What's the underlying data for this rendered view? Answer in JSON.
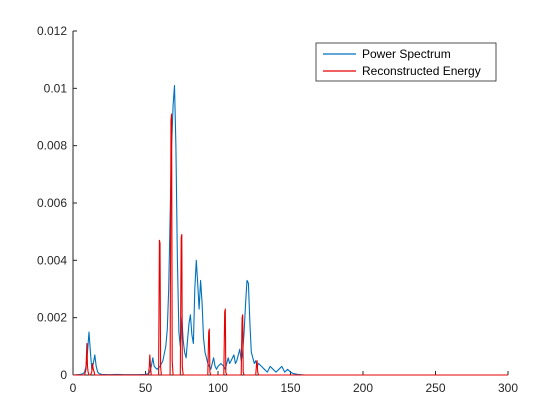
{
  "chart_data": {
    "type": "line",
    "xlim": [
      0,
      300
    ],
    "ylim": [
      0,
      0.012
    ],
    "x_ticks": [
      0,
      50,
      100,
      150,
      200,
      250,
      300
    ],
    "y_ticks": [
      0,
      0.002,
      0.004,
      0.006,
      0.008,
      0.01,
      0.012
    ],
    "x_tick_labels": [
      "0",
      "50",
      "100",
      "150",
      "200",
      "250",
      "300"
    ],
    "y_tick_labels": [
      "0",
      "0.002",
      "0.004",
      "0.006",
      "0.008",
      "0.01",
      "0.012"
    ],
    "grid": false,
    "legend_position": "top-right",
    "series": [
      {
        "name": "Power Spectrum",
        "color": "#0072BD",
        "x": [
          0,
          5,
          7,
          8,
          9,
          10,
          11,
          12,
          13,
          14,
          15,
          16,
          17,
          18,
          20,
          25,
          30,
          35,
          40,
          45,
          50,
          52,
          53,
          54,
          55,
          56,
          58,
          60,
          62,
          64,
          65,
          66,
          67,
          68,
          69,
          70,
          71,
          72,
          73,
          74,
          75,
          76,
          77,
          78,
          79,
          80,
          81,
          82,
          83,
          84,
          85,
          86,
          87,
          88,
          89,
          90,
          91,
          92,
          93,
          94,
          95,
          96,
          97,
          98,
          99,
          100,
          102,
          104,
          105,
          106,
          107,
          108,
          109,
          110,
          111,
          112,
          113,
          114,
          115,
          116,
          117,
          118,
          119,
          120,
          121,
          122,
          123,
          124,
          125,
          126,
          127,
          128,
          130,
          132,
          134,
          136,
          138,
          140,
          142,
          144,
          146,
          148,
          150,
          152,
          155,
          160,
          200,
          300
        ],
        "y": [
          0,
          2e-05,
          5e-05,
          0.0001,
          0.0003,
          0.0008,
          0.0015,
          0.0008,
          0.0002,
          0.0004,
          0.0007,
          0.0003,
          0.0001,
          5e-05,
          2e-05,
          1e-05,
          2e-05,
          1e-05,
          1e-05,
          1e-05,
          2e-05,
          5e-05,
          0.0001,
          0.0003,
          0.0006,
          0.0003,
          0.0002,
          0.0003,
          0.0005,
          0.001,
          0.0016,
          0.003,
          0.0055,
          0.008,
          0.0094,
          0.0101,
          0.008,
          0.004,
          0.0015,
          0.001,
          0.002,
          0.0012,
          0.0008,
          0.0006,
          0.0012,
          0.0018,
          0.0021,
          0.0014,
          0.0011,
          0.003,
          0.004,
          0.0032,
          0.0023,
          0.0033,
          0.0025,
          0.0013,
          0.0008,
          0.0006,
          0.0004,
          0.0003,
          0.0002,
          0.0004,
          0.0006,
          0.0003,
          0.0002,
          0.0003,
          0.0004,
          0.0003,
          0.0002,
          0.0004,
          0.0006,
          0.0004,
          0.0005,
          0.0006,
          0.0007,
          0.0004,
          0.0005,
          0.0007,
          0.0009,
          0.0005,
          0.0008,
          0.0015,
          0.0025,
          0.0033,
          0.0032,
          0.0018,
          0.0008,
          0.0006,
          0.0004,
          0.0005,
          0.0003,
          0.0004,
          0.0003,
          0.0002,
          0.0001,
          0.0003,
          0.0002,
          0.0001,
          0.0002,
          0.0003,
          0.0001,
          0.0002,
          0.0001,
          5e-05,
          2e-05,
          0,
          0,
          0
        ]
      },
      {
        "name": "Reconstructed Energy",
        "color": "#E60000",
        "x": [
          0,
          8,
          9,
          9.6,
          10,
          10.4,
          11,
          12,
          13,
          13.4,
          14,
          14.6,
          15,
          52,
          52.6,
          53,
          53.6,
          54,
          59,
          59.6,
          60,
          60.4,
          61,
          67,
          67.6,
          68,
          68.4,
          69,
          74,
          74.6,
          75,
          75.4,
          76,
          93,
          93.6,
          94,
          94.4,
          95,
          104,
          104.6,
          105,
          105.4,
          106,
          116,
          116.6,
          117,
          117.4,
          118,
          126,
          126.6,
          127,
          127.4,
          128,
          300
        ],
        "y": [
          0,
          0,
          0.0002,
          0.0011,
          0.0003,
          0.0001,
          0,
          0,
          0.0001,
          0.0004,
          0.0002,
          0.0001,
          0,
          0,
          0.0003,
          0.0007,
          0.0002,
          0,
          0,
          0.0047,
          0.0046,
          0.0003,
          0,
          0,
          0.0089,
          0.0091,
          0.0005,
          0,
          0,
          0.0048,
          0.0049,
          0.0003,
          0,
          0,
          0.0015,
          0.0016,
          0.0001,
          0,
          0,
          0.0022,
          0.0023,
          0.0001,
          0,
          0,
          0.002,
          0.0021,
          0.0001,
          0,
          0,
          0.0004,
          0.0005,
          0.0001,
          0,
          0
        ]
      }
    ]
  }
}
